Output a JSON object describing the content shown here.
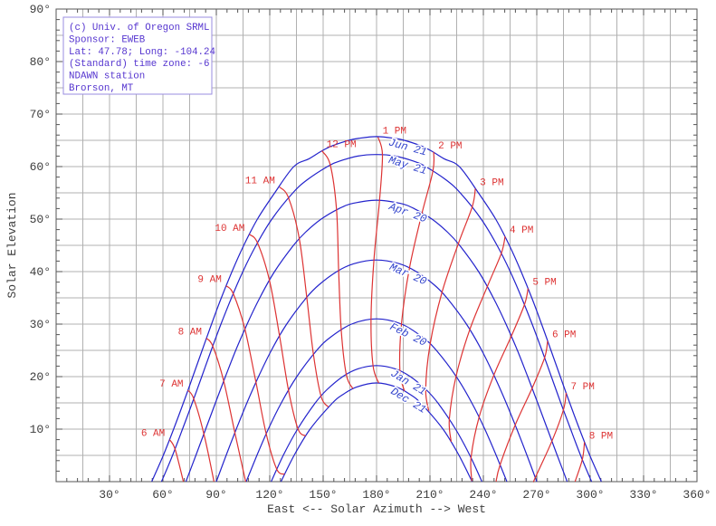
{
  "colors": {
    "background": "#ffffff",
    "grid": "#b0b0b0",
    "frame": "#555555",
    "tick_label": "#3d3d3d",
    "axis_title": "#3d3d3d",
    "date_curve": "#2323cc",
    "date_label": "#3344cc",
    "hour_line": "#dd3333",
    "hour_label": "#dd3333",
    "legend_text": "#5535cf",
    "legend_border": "#9a8ce0",
    "legend_bg": "#ffffff"
  },
  "legend": {
    "lines": [
      "(c) Univ. of Oregon SRML",
      "Sponsor: EWEB",
      "Lat: 47.78; Long: -104.24",
      "(Standard) time zone: -6",
      "NDAWN station",
      "Brorson, MT"
    ]
  },
  "chart_data": {
    "type": "line",
    "title": "",
    "xlabel": "East <-- Solar Azimuth --> West",
    "ylabel": "Solar Elevation",
    "xlim": [
      0,
      360
    ],
    "ylim": [
      0,
      90
    ],
    "x_grid_step": 15,
    "y_grid_step": 5,
    "x_minor_tick_step": 6,
    "y_minor_tick_step": 2,
    "x_ticks": [
      [
        30,
        "30°"
      ],
      [
        60,
        "60°"
      ],
      [
        90,
        "90°"
      ],
      [
        120,
        "120°"
      ],
      [
        150,
        "150°"
      ],
      [
        180,
        "180°"
      ],
      [
        210,
        "210°"
      ],
      [
        240,
        "240°"
      ],
      [
        270,
        "270°"
      ],
      [
        300,
        "300°"
      ],
      [
        330,
        "330°"
      ],
      [
        360,
        "360°"
      ]
    ],
    "y_ticks": [
      [
        10,
        "10°"
      ],
      [
        20,
        "20°"
      ],
      [
        30,
        "30°"
      ],
      [
        40,
        "40°"
      ],
      [
        50,
        "50°"
      ],
      [
        60,
        "60°"
      ],
      [
        70,
        "70°"
      ],
      [
        80,
        "80°"
      ],
      [
        90,
        "90°"
      ]
    ],
    "sun_path_curves": [
      {
        "label": "Jun 21",
        "points_half": [
          [
            53.7,
            0
          ],
          [
            60.2,
            5
          ],
          [
            66.0,
            10
          ],
          [
            71.5,
            15
          ],
          [
            76.8,
            20
          ],
          [
            82.0,
            25
          ],
          [
            87.3,
            30
          ],
          [
            92.8,
            35
          ],
          [
            98.8,
            40
          ],
          [
            105.4,
            45
          ],
          [
            113.1,
            50
          ],
          [
            122.8,
            55
          ],
          [
            133.5,
            60
          ],
          [
            142.1,
            61.5
          ],
          [
            149.3,
            63
          ],
          [
            155.4,
            64
          ],
          [
            164.4,
            65
          ],
          [
            170.3,
            65.4
          ],
          [
            180,
            65.7
          ]
        ]
      },
      {
        "label": "May 21",
        "points_half": [
          [
            59.2,
            0
          ],
          [
            65.4,
            5
          ],
          [
            71.0,
            10
          ],
          [
            76.5,
            15
          ],
          [
            81.8,
            20
          ],
          [
            87.1,
            25
          ],
          [
            92.6,
            30
          ],
          [
            98.5,
            35
          ],
          [
            104.9,
            40
          ],
          [
            112.3,
            45
          ],
          [
            121.2,
            50
          ],
          [
            133.0,
            55
          ],
          [
            141.1,
            57.5
          ],
          [
            152.4,
            60
          ],
          [
            158.9,
            61
          ],
          [
            169.5,
            62
          ],
          [
            180,
            62.3
          ]
        ]
      },
      {
        "label": "Apr 20",
        "points_half": [
          [
            72.9,
            0
          ],
          [
            78.5,
            5
          ],
          [
            84.0,
            10
          ],
          [
            89.5,
            15
          ],
          [
            95.1,
            20
          ],
          [
            100.9,
            25
          ],
          [
            107.3,
            30
          ],
          [
            114.4,
            35
          ],
          [
            122.7,
            40
          ],
          [
            133.3,
            45
          ],
          [
            140.1,
            47.5
          ],
          [
            148.9,
            50
          ],
          [
            158.9,
            52
          ],
          [
            166.8,
            53
          ],
          [
            180,
            53.6
          ]
        ]
      },
      {
        "label": "Mar 20",
        "points_half": [
          [
            90.0,
            0
          ],
          [
            95.5,
            5
          ],
          [
            101.2,
            10
          ],
          [
            107.2,
            15
          ],
          [
            113.7,
            20
          ],
          [
            120.9,
            25
          ],
          [
            129.5,
            30
          ],
          [
            140.5,
            35
          ],
          [
            147.7,
            37.5
          ],
          [
            157.7,
            40
          ],
          [
            167.2,
            41.5
          ],
          [
            180,
            42.2
          ]
        ]
      },
      {
        "label": "Feb 20",
        "points_half": [
          [
            106.8,
            0
          ],
          [
            112.8,
            5
          ],
          [
            119.2,
            10
          ],
          [
            126.5,
            15
          ],
          [
            135.2,
            20
          ],
          [
            146.4,
            25
          ],
          [
            154.1,
            27.5
          ],
          [
            165.9,
            30
          ],
          [
            180,
            31.0
          ]
        ]
      },
      {
        "label": "Jan 21",
        "points_half": [
          [
            120.8,
            0
          ],
          [
            127.6,
            5
          ],
          [
            135.6,
            10
          ],
          [
            145.6,
            15
          ],
          [
            152.1,
            17.5
          ],
          [
            161.0,
            20
          ],
          [
            169.7,
            21.5
          ],
          [
            180,
            22.1
          ]
        ]
      },
      {
        "label": "Dec 21",
        "points_half": [
          [
            126.3,
            0
          ],
          [
            133.7,
            5
          ],
          [
            142.7,
            10
          ],
          [
            155.3,
            15
          ],
          [
            160.7,
            16.5
          ],
          [
            168.7,
            18
          ],
          [
            180,
            18.8
          ]
        ]
      }
    ],
    "hour_lines": [
      {
        "label": "6 AM",
        "side": "am",
        "points": [
          [
            63.7,
            8.0
          ],
          [
            66.8,
            6.2
          ],
          [
            71.5,
            0
          ]
        ]
      },
      {
        "label": "7 AM",
        "side": "am",
        "points": [
          [
            74.0,
            17.4
          ],
          [
            77.3,
            15.8
          ],
          [
            83.0,
            9.1
          ],
          [
            88.7,
            0
          ]
        ]
      },
      {
        "label": "8 AM",
        "side": "am",
        "points": [
          [
            84.4,
            27.3
          ],
          [
            88.0,
            25.8
          ],
          [
            94.1,
            19.2
          ],
          [
            100.4,
            9.3
          ],
          [
            106.5,
            0
          ]
        ]
      },
      {
        "label": "9 AM",
        "side": "am",
        "points": [
          [
            95.5,
            37.3
          ],
          [
            99.5,
            35.8
          ],
          [
            106.0,
            29.1
          ],
          [
            112.2,
            19.0
          ],
          [
            118.0,
            9.1
          ],
          [
            123.9,
            2.4
          ],
          [
            128.3,
            1.4
          ]
        ]
      },
      {
        "label": "10 AM",
        "side": "am",
        "points": [
          [
            108.5,
            47.1
          ],
          [
            113.1,
            45.5
          ],
          [
            119.8,
            38.4
          ],
          [
            125.5,
            27.8
          ],
          [
            130.5,
            17.5
          ],
          [
            135.8,
            10.1
          ],
          [
            140.1,
            8.7
          ]
        ]
      },
      {
        "label": "11 AM",
        "side": "am",
        "points": [
          [
            125.5,
            56.1
          ],
          [
            130.5,
            54.1
          ],
          [
            136.6,
            46.3
          ],
          [
            140.8,
            35.1
          ],
          [
            144.5,
            24.3
          ],
          [
            148.8,
            16.3
          ],
          [
            152.9,
            14.2
          ]
        ]
      },
      {
        "label": "12 PM",
        "side": "pm",
        "points": [
          [
            149.3,
            63.0
          ],
          [
            154.0,
            60.3
          ],
          [
            157.5,
            51.8
          ],
          [
            158.7,
            40.2
          ],
          [
            160.1,
            29.0
          ],
          [
            163.0,
            20.4
          ],
          [
            166.7,
            17.7
          ]
        ]
      },
      {
        "label": "1 PM",
        "side": "pm",
        "points": [
          [
            180.8,
            65.6
          ],
          [
            183.3,
            62.3
          ],
          [
            181.7,
            53.6
          ],
          [
            178.5,
            42.2
          ],
          [
            176.9,
            31.0
          ],
          [
            178.0,
            22.1
          ],
          [
            181.2,
            18.8
          ]
        ]
      },
      {
        "label": "2 PM",
        "side": "pm",
        "points": [
          [
            212.1,
            62.8
          ],
          [
            211.7,
            59.2
          ],
          [
            205.6,
            51.2
          ],
          [
            198.5,
            40.7
          ],
          [
            194.0,
            30.0
          ],
          [
            193.1,
            21.1
          ],
          [
            195.6,
            17.3
          ]
        ]
      },
      {
        "label": "3 PM",
        "side": "pm",
        "points": [
          [
            235.5,
            55.8
          ],
          [
            233.7,
            52.3
          ],
          [
            225.9,
            45.3
          ],
          [
            216.7,
            36.0
          ],
          [
            210.1,
            26.2
          ],
          [
            207.6,
            17.6
          ],
          [
            209.3,
            13.5
          ]
        ]
      },
      {
        "label": "4 PM",
        "side": "pm",
        "points": [
          [
            252.2,
            46.7
          ],
          [
            250.1,
            43.5
          ],
          [
            242.3,
            37.2
          ],
          [
            232.4,
            29.0
          ],
          [
            224.7,
            20.1
          ],
          [
            220.9,
            11.9
          ],
          [
            221.9,
            7.6
          ]
        ]
      },
      {
        "label": "5 PM",
        "side": "pm",
        "points": [
          [
            265.1,
            36.8
          ],
          [
            263.1,
            33.7
          ],
          [
            255.7,
            27.7
          ],
          [
            245.9,
            20.3
          ],
          [
            237.6,
            12.3
          ],
          [
            233.1,
            4.6
          ],
          [
            233.5,
            0.1
          ]
        ]
      },
      {
        "label": "6 PM",
        "side": "pm",
        "points": [
          [
            276.1,
            26.8
          ],
          [
            274.4,
            23.6
          ],
          [
            267.4,
            17.8
          ],
          [
            257.9,
            10.8
          ],
          [
            249.4,
            3.2
          ],
          [
            247.1,
            0
          ]
        ]
      },
      {
        "label": "7 PM",
        "side": "pm",
        "points": [
          [
            286.5,
            16.9
          ],
          [
            285.0,
            13.7
          ],
          [
            278.5,
            7.7
          ],
          [
            269.2,
            0.8
          ],
          [
            268.3,
            0
          ]
        ]
      },
      {
        "label": "8 PM",
        "side": "pm",
        "points": [
          [
            296.8,
            7.5
          ],
          [
            295.6,
            4.2
          ],
          [
            291.5,
            0
          ]
        ]
      }
    ]
  }
}
